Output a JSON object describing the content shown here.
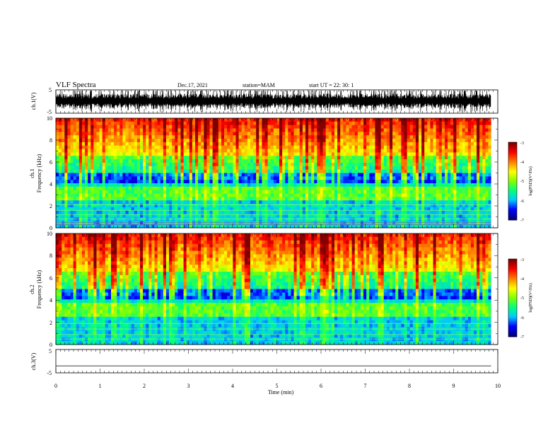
{
  "header": {
    "title": "VLF Spectra",
    "date": "Dec.17, 2021",
    "station": "station=MAM",
    "start": "start  UT =   22: 30: 1"
  },
  "chart_data": [
    {
      "type": "line",
      "panel": "ch1-waveform",
      "ylabel": "ch.1(V)",
      "ylim": [
        -5,
        5
      ],
      "yticks": [
        "5",
        "-5"
      ],
      "xlim": [
        0,
        10
      ],
      "note": "dense broadband waveform with impulsive bursts (sferics)"
    },
    {
      "type": "heatmap",
      "panel": "ch1-spectrogram",
      "ylabel_top": "ch.1",
      "ylabel": "Frequency  (kHz)",
      "ylim": [
        0,
        10
      ],
      "yticks": [
        "0",
        "2",
        "4",
        "6",
        "8",
        "10"
      ],
      "xlim": [
        0,
        10
      ],
      "data_end_min": 9.85,
      "colorbar": {
        "label": "log(PSD)(V²/Hz)",
        "range": [
          -7,
          -3
        ],
        "ticks": [
          "-3",
          "-4",
          "-5",
          "-6",
          "-7"
        ]
      }
    },
    {
      "type": "heatmap",
      "panel": "ch2-spectrogram",
      "ylabel_top": "ch.2",
      "ylabel": "Frequency  (kHz)",
      "ylim": [
        0,
        10
      ],
      "yticks": [
        "0",
        "2",
        "4",
        "6",
        "8",
        "10"
      ],
      "xlim": [
        0,
        10
      ],
      "data_end_min": 9.85,
      "colorbar": {
        "label": "log(PSD)(V²/Hz)",
        "range": [
          -7,
          -3
        ],
        "ticks": [
          "-3",
          "-4",
          "-5",
          "-6",
          "-7"
        ]
      }
    },
    {
      "type": "line",
      "panel": "ch3-waveform",
      "ylabel": "ch.3(V)",
      "ylim": [
        -5,
        5
      ],
      "yticks": [
        "5",
        "-5"
      ],
      "xlim": [
        0,
        10
      ],
      "note": "flat trace near -2 V",
      "level_v": -2
    }
  ],
  "xaxis": {
    "label": "Time  (min)",
    "ticks": [
      "0",
      "1",
      "2",
      "3",
      "4",
      "5",
      "6",
      "7",
      "8",
      "9",
      "10"
    ]
  },
  "colors": {
    "colormap": [
      "#000080",
      "#0000ff",
      "#00c8ff",
      "#00ff80",
      "#80ff00",
      "#ffff00",
      "#ff8000",
      "#ff0000",
      "#800000"
    ]
  }
}
